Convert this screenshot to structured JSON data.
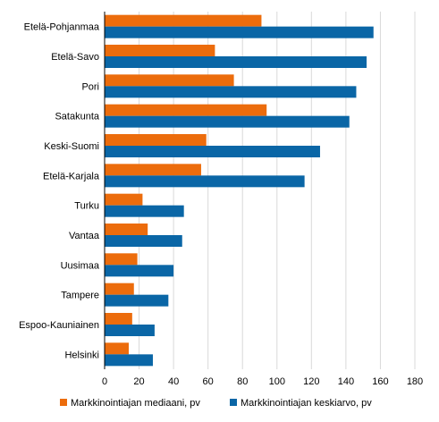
{
  "chart_data": {
    "type": "bar",
    "orientation": "horizontal",
    "categories": [
      "Etelä-Pohjanmaa",
      "Etelä-Savo",
      "Pori",
      "Satakunta",
      "Keski-Suomi",
      "Etelä-Karjala",
      "Turku",
      "Vantaa",
      "Uusimaa",
      "Tampere",
      "Espoo-Kauniainen",
      "Helsinki"
    ],
    "series": [
      {
        "name": "Markkinointiajan mediaani, pv",
        "color": "#ec6c0c",
        "values": [
          91,
          64,
          75,
          94,
          59,
          56,
          22,
          25,
          19,
          17,
          16,
          14
        ]
      },
      {
        "name": "Markkinointiajan keskiarvo, pv",
        "color": "#0a66a6",
        "values": [
          156,
          152,
          146,
          142,
          125,
          116,
          46,
          45,
          40,
          37,
          29,
          28
        ]
      }
    ],
    "xlim": [
      0,
      180
    ],
    "xticks": [
      0,
      20,
      40,
      60,
      80,
      100,
      120,
      140,
      160,
      180
    ],
    "grid": "vertical",
    "legend": "bottom"
  }
}
